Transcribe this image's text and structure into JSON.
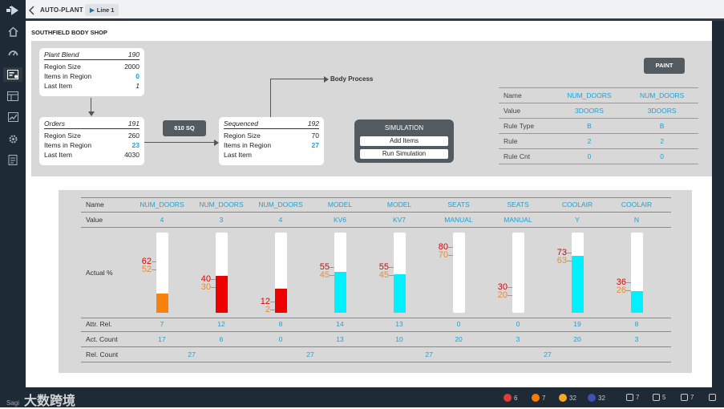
{
  "topbar": {
    "title": "AUTO-PLANT",
    "crumb": "Line 1"
  },
  "shop_title": "SOUTHFIELD BODY SHOP",
  "cards": {
    "plant_blend": {
      "name": "Plant Blend",
      "count": "190",
      "rows": [
        {
          "label": "Region Size",
          "value": "2000"
        },
        {
          "label": "Items in Region",
          "value": "0"
        },
        {
          "label": "Last Item",
          "value": "1"
        }
      ]
    },
    "orders": {
      "name": "Orders",
      "count": "191",
      "rows": [
        {
          "label": "Region Size",
          "value": "260"
        },
        {
          "label": "Items in Region",
          "value": "23"
        },
        {
          "label": "Last Item",
          "value": "4030"
        }
      ]
    },
    "sequenced": {
      "name": "Sequenced",
      "count": "192",
      "rows": [
        {
          "label": "Region Size",
          "value": "70"
        },
        {
          "label": "Items in Region",
          "value": "27"
        },
        {
          "label": "Last Item",
          "value": ""
        }
      ]
    }
  },
  "sq_button": "810 SQ",
  "body_process": "Body Process",
  "simulation": {
    "label": "SIMULATION",
    "add": "Add Items",
    "run": "Run Simulation"
  },
  "paint_button": "PAINT",
  "rules": {
    "labels": [
      "Name",
      "Value",
      "Rule Type",
      "Rule",
      "Rule Cnt"
    ],
    "col1": [
      "NUM_DOORS",
      "3DOORS",
      "B",
      "2",
      "0"
    ],
    "col2": [
      "NUM_DOORS",
      "3DOORS",
      "B",
      "2",
      "0"
    ]
  },
  "attr_table": {
    "row_labels": {
      "name": "Name",
      "value": "Value",
      "actual": "Actual %",
      "attr_rel": "Attr. Rel.",
      "act_count": "Act. Count",
      "rel_count": "Rel. Count"
    },
    "columns": [
      {
        "name": "NUM_DOORS",
        "value": "4",
        "target": "62",
        "actual": "52",
        "fill": 0.24,
        "color": "#f7820f",
        "attr_rel": "7",
        "act_count": "17"
      },
      {
        "name": "NUM_DOORS",
        "value": "3",
        "target": "40",
        "actual": "30",
        "fill": 0.46,
        "color": "#ee0000",
        "attr_rel": "12",
        "act_count": "6"
      },
      {
        "name": "NUM_DOORS",
        "value": "4",
        "target": "12",
        "actual": "2",
        "fill": 0.3,
        "color": "#ee0000",
        "attr_rel": "8",
        "act_count": "0"
      },
      {
        "name": "MODEL",
        "value": "KV6",
        "target": "55",
        "actual": "45",
        "fill": 0.51,
        "color": "#00f0ff",
        "attr_rel": "14",
        "act_count": "13"
      },
      {
        "name": "MODEL",
        "value": "KV7",
        "target": "55",
        "actual": "45",
        "fill": 0.48,
        "color": "#00f0ff",
        "attr_rel": "13",
        "act_count": "10"
      },
      {
        "name": "SEATS",
        "value": "MANUAL",
        "target": "80",
        "actual": "70",
        "fill": 0,
        "color": "#00f0ff",
        "attr_rel": "0",
        "act_count": "20"
      },
      {
        "name": "SEATS",
        "value": "MANUAL",
        "target": "30",
        "actual": "20",
        "fill": 0,
        "color": "#00f0ff",
        "attr_rel": "0",
        "act_count": "3"
      },
      {
        "name": "COOLAIR",
        "value": "Y",
        "target": "73",
        "actual": "63",
        "fill": 0.71,
        "color": "#00f0ff",
        "attr_rel": "19",
        "act_count": "20"
      },
      {
        "name": "COOLAIR",
        "value": "N",
        "target": "36",
        "actual": "26",
        "fill": 0.27,
        "color": "#00f0ff",
        "attr_rel": "8",
        "act_count": "3"
      }
    ],
    "rel_counts": [
      "27",
      "27",
      "27",
      "27"
    ]
  },
  "status": [
    {
      "icon": "red-circle-icon",
      "color": "#e53935",
      "count": "6"
    },
    {
      "icon": "orange-circle-icon",
      "color": "#f57c00",
      "count": "7"
    },
    {
      "icon": "yellow-circle-icon",
      "color": "#f9a825",
      "count": "32"
    },
    {
      "icon": "blue-grid-icon",
      "color": "#3f51b5",
      "count": "32"
    },
    {
      "icon": "warning-icon",
      "color": "#cccccc",
      "count": "7"
    },
    {
      "icon": "list-icon",
      "color": "#cccccc",
      "count": "5"
    },
    {
      "icon": "chat-icon",
      "color": "#cccccc",
      "count": "7"
    },
    {
      "icon": "help-icon",
      "color": "#cccccc",
      "count": ""
    }
  ],
  "watermark": {
    "small": "Sagi",
    "text": "大数跨境"
  }
}
